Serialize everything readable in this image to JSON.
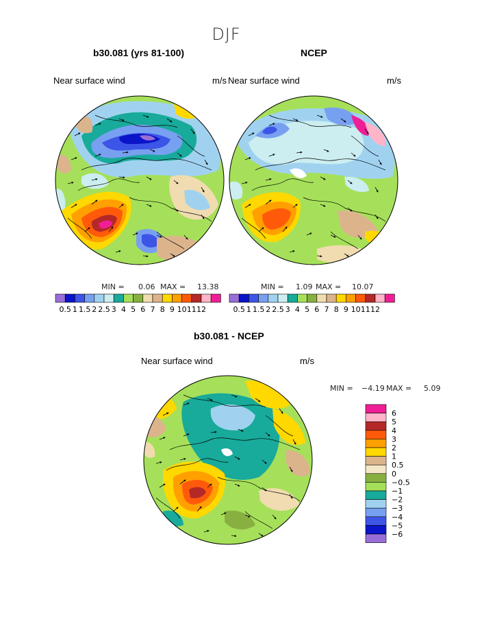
{
  "season": "DJF",
  "panels": [
    {
      "title": "b30.081 (yrs 81-100)",
      "variable": "Near surface wind",
      "units": "m/s",
      "min_label": "MIN =",
      "min_value": "0.06",
      "max_label": "MAX =",
      "max_value": "13.38"
    },
    {
      "title": "NCEP",
      "variable": "Near surface wind",
      "units": "m/s",
      "min_label": "MIN =",
      "min_value": "1.09",
      "max_label": "MAX =",
      "max_value": "10.07"
    },
    {
      "title": "b30.081 - NCEP",
      "variable": "Near surface wind",
      "units": "m/s",
      "min_label": "MIN =",
      "min_value": "−4.19",
      "max_label": "MAX =",
      "max_value": "5.09"
    }
  ],
  "colorbar_top": {
    "labels": [
      "0.5",
      "1",
      "1.5",
      "2",
      "2.5",
      "3",
      "4",
      "5",
      "6",
      "7",
      "8",
      "9",
      "10",
      "11",
      "12"
    ],
    "colors": [
      "#9a6ed8",
      "#0a14c8",
      "#3c55e6",
      "#78a0f0",
      "#a0d2f0",
      "#cceef0",
      "#18aa9a",
      "#a6e05a",
      "#88b040",
      "#f0dcb0",
      "#dcb48c",
      "#ffd800",
      "#ffa000",
      "#ff5a0a",
      "#b42828",
      "#ffb4c8",
      "#f01e96"
    ]
  },
  "colorbar_diff": {
    "labels": [
      "6",
      "5",
      "4",
      "3",
      "2",
      "1",
      "0.5",
      "0",
      "−0.5",
      "−1",
      "−2",
      "−3",
      "−4",
      "−5",
      "−6"
    ],
    "colors": [
      "#f01e96",
      "#ffb4c8",
      "#b42828",
      "#ff5a0a",
      "#ffa000",
      "#ffd800",
      "#dcb48c",
      "#f5e6c8",
      "#88b040",
      "#a6e05a",
      "#18aa9a",
      "#a0d2f0",
      "#78a0f0",
      "#3c55e6",
      "#0a14c8",
      "#9a6ed8"
    ]
  },
  "palette": {
    "ocean_base": "#a6e05a",
    "arctic_low": "#3c55e6",
    "arctic_teal": "#18aa9a",
    "coast_line": "#000000",
    "jet_orange": "#ff5a0a",
    "jet_red": "#b42828",
    "jet_pink": "#f01e96"
  },
  "map_icons": [
    "polar-stereographic-map",
    "wind-vector-arrows",
    "coastline"
  ]
}
